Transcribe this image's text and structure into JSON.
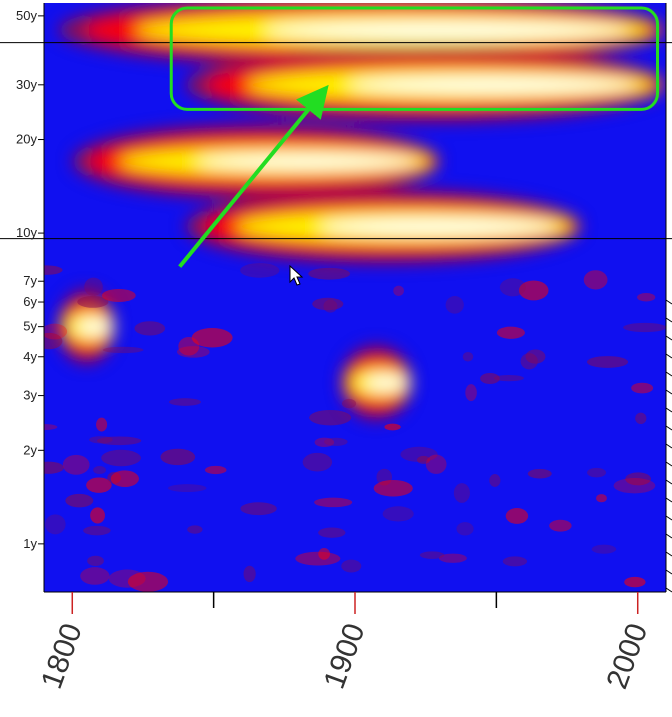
{
  "chart_data": {
    "type": "heatmap",
    "title": "",
    "xlabel": "",
    "ylabel": "",
    "x_range": [
      1790,
      2010
    ],
    "y_scale": "log",
    "y_range": [
      0.7,
      55
    ],
    "y_ticks": [
      {
        "value": 1,
        "label": "1y"
      },
      {
        "value": 2,
        "label": "2y"
      },
      {
        "value": 3,
        "label": "3y"
      },
      {
        "value": 4,
        "label": "4y"
      },
      {
        "value": 5,
        "label": "5y"
      },
      {
        "value": 6,
        "label": "6y"
      },
      {
        "value": 7,
        "label": "7y"
      },
      {
        "value": 10,
        "label": "10y"
      },
      {
        "value": 20,
        "label": "20y"
      },
      {
        "value": 30,
        "label": "30y"
      },
      {
        "value": 50,
        "label": "50y"
      }
    ],
    "x_ticks": [
      {
        "value": 1800,
        "label": "1800",
        "major": true
      },
      {
        "value": 1850,
        "label": "",
        "major": false
      },
      {
        "value": 1900,
        "label": "1900",
        "major": true
      },
      {
        "value": 1950,
        "label": "",
        "major": false
      },
      {
        "value": 2000,
        "label": "2000",
        "major": true
      }
    ],
    "reference_lines_y": [
      41,
      9.6
    ],
    "colormap": [
      "#0000ff",
      "#8b0a50",
      "#ff0000",
      "#ffff00",
      "#ffffff"
    ],
    "power_features": [
      {
        "name": "band-35-50y",
        "x_start": 1795,
        "x_end": 2010,
        "period": 45,
        "strength": 1.0
      },
      {
        "name": "band-25-35y",
        "x_start": 1840,
        "x_end": 2010,
        "period": 30,
        "strength": 0.95
      },
      {
        "name": "band-15-20y",
        "x_start": 1800,
        "x_end": 1930,
        "period": 17,
        "strength": 0.85
      },
      {
        "name": "band-10y",
        "x_start": 1840,
        "x_end": 1980,
        "period": 10.5,
        "strength": 0.95
      },
      {
        "name": "spot-5y",
        "x_start": 1795,
        "x_end": 1815,
        "period": 5,
        "strength": 0.9
      },
      {
        "name": "spot-3.3y",
        "x_start": 1895,
        "x_end": 1920,
        "period": 3.3,
        "strength": 0.85
      }
    ],
    "annotations": {
      "highlight_box": {
        "x_start": 1835,
        "x_end": 2007,
        "y_low": 25,
        "y_high": 53,
        "color": "#22dd22"
      },
      "arrow": {
        "from": [
          1838,
          7.8
        ],
        "to": [
          1888,
          28
        ],
        "color": "#22dd22"
      }
    }
  }
}
